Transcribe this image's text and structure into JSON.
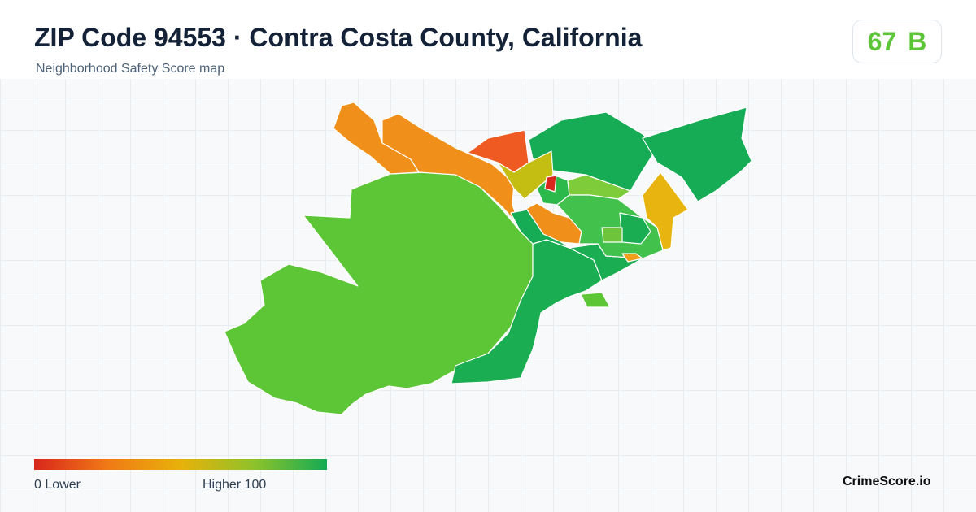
{
  "header": {
    "title": "ZIP Code 94553 · Contra Costa County, California",
    "subtitle": "Neighborhood Safety Score map"
  },
  "score": {
    "value": "67",
    "grade": "B",
    "color": "#5cc437"
  },
  "legend": {
    "low_label": "0  Lower",
    "high_label": "Higher  100",
    "min": 0,
    "max": 100,
    "gradient_colors": [
      "#d9261c",
      "#f07a16",
      "#e8b10a",
      "#8fc22a",
      "#14ab55"
    ]
  },
  "brand": {
    "name": "CrimeScore.io"
  },
  "map": {
    "regions": [
      {
        "color": "#5cc637"
      },
      {
        "color": "#f0901b"
      },
      {
        "color": "#f0901b"
      },
      {
        "color": "#ee5a22"
      },
      {
        "color": "#16ab55"
      },
      {
        "color": "#16ab55"
      },
      {
        "color": "#e8b410"
      },
      {
        "color": "#1aad52"
      },
      {
        "color": "#1aad52"
      },
      {
        "color": "#f0901b"
      },
      {
        "color": "#c4be12"
      },
      {
        "color": "#2bb94c"
      },
      {
        "color": "#7fcc3a"
      },
      {
        "color": "#d9261c"
      },
      {
        "color": "#e8b410"
      },
      {
        "color": "#42c24c"
      },
      {
        "color": "#1aad52"
      },
      {
        "color": "#f0a01b"
      },
      {
        "color": "#6ec53c"
      },
      {
        "color": "#5cc637"
      },
      {
        "color": "#16ab55"
      }
    ]
  }
}
